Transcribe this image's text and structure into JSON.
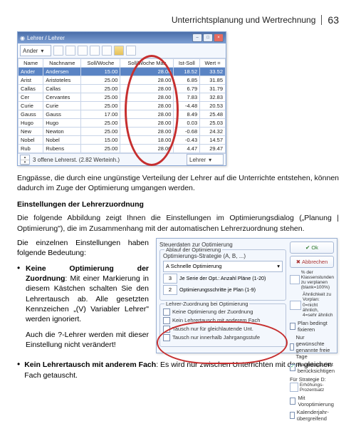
{
  "header": {
    "title": "Unterrichtsplanung und Wertrechnung",
    "page": "63"
  },
  "shot1": {
    "window_title": "Lehrer / Lehrer",
    "dropdown": "Ander",
    "columns": [
      "Name",
      "Nachname",
      "Soll/Woche",
      "Soll/Woche Max",
      "Ist-Soll",
      "Wert ="
    ],
    "rows": [
      [
        "Ander",
        "Andersen",
        "15.00",
        "28.00",
        "18.52",
        "33.52",
        true
      ],
      [
        "Arist",
        "Aristoteles",
        "25.00",
        "28.00",
        "6.85",
        "31.85",
        false
      ],
      [
        "Callas",
        "Callas",
        "25.00",
        "28.00",
        "6.79",
        "31.79",
        false
      ],
      [
        "Cer",
        "Cervantes",
        "25.00",
        "28.00",
        "7.83",
        "32.83",
        false
      ],
      [
        "Curie",
        "Curie",
        "25.00",
        "28.00",
        "-4.48",
        "20.53",
        false
      ],
      [
        "Gauss",
        "Gauss",
        "17.00",
        "28.00",
        "8.49",
        "25.48",
        false
      ],
      [
        "Hugo",
        "Hugo",
        "25.00",
        "28.00",
        "0.03",
        "25.03",
        false
      ],
      [
        "New",
        "Newton",
        "25.00",
        "28.00",
        "-0.68",
        "24.32",
        false
      ],
      [
        "Nobel",
        "Nobel",
        "15.00",
        "18.00",
        "-0.43",
        "14.57",
        false
      ],
      [
        "Rub",
        "Rubens",
        "25.00",
        "28.00",
        "4.47",
        "29.47",
        false
      ]
    ],
    "status": "3 offene Lehrerst. (2.82 Werteinh.)",
    "status_label": "Lehrer"
  },
  "para1": "Engpässe, die durch eine ungünstige Verteilung der Lehrer auf die Unterrichte entstehen, können dadurch im Zuge der Optimierung umgangen werden.",
  "subhead": "Einstellungen der Lehrerzuordnung",
  "para2": "Die folgende Abbildung zeigt Ihnen die Einstellungen im Optimierungsdialog („Planung | Optimierung\"), die im Zusammenhang mit der automatischen Lehrerzuordnung stehen.",
  "leftcol": {
    "intro": "Die einzelnen Einstellungen haben folgende Bedeutung:",
    "b1_strong": "Keine Optimierung der Zuordnung",
    "b1_rest": ": Mit einer Markierung in diesem Kästchen schalten Sie den Lehrertausch ab. Alle gesetzten Kennzeichen „(V) Variabler Lehrer\" werden ignoriert.",
    "b1_p2": "Auch die ?-Lehrer werden mit dieser Einstellung nicht verändert!"
  },
  "shot2": {
    "top_label": "Steuerdaten zur Optimierung",
    "grp1_title": "Ablauf der Optimierung",
    "strategy_label": "Optimierungs-Strategie (A, B, ...)",
    "strategy_value": "A Schnelle Optimierung",
    "row1_val": "3",
    "row1_txt": "Je Serie der Opt.: Anzahl Pläne (1-20)",
    "row2_val": "2",
    "row2_txt": "Optimierungsschritte je Plan (1-9)",
    "grp2_title": "Lehrer-Zuordnung bei Optimierung",
    "c1": "Keine Optimierung der Zuordnung",
    "c2": "Kein Lehrertausch mit anderem Fach",
    "c3": "Tausch nur für gleichlautende Unt.",
    "c4": "Tausch nur innerhalb Jahrgangsstufe",
    "btn_ok": "Ok",
    "btn_abort": "Abbrechen",
    "r1_val": "",
    "r1_txt": "% der Klassenstunden zu verplanen (blank=100%)",
    "r2_val": "",
    "r2_txt": "Ähnlichkeit zu Vorplan: 0=nicht ähnlich, 4=sehr ähnlich",
    "rc1": "Plan bedingt fixieren",
    "rc2": "Nur gewünschte genannte freie Tage",
    "rc3": "Raumkapazität berücksichtigen",
    "r3_lbl": "Für Strategie D:",
    "r3_val": "",
    "r5_txt": "Erhöhungs-Prozentsatz",
    "rc4": "Mit Voroptimierung",
    "rc5": "Kalenderjahr-übergreifend"
  },
  "bottom": {
    "b2_strong": "Kein Lehrertausch mit anderem Fach",
    "b2_rest": ": Es wird nur zwischen Unterrichten mit dem gleichen Fach getauscht."
  }
}
